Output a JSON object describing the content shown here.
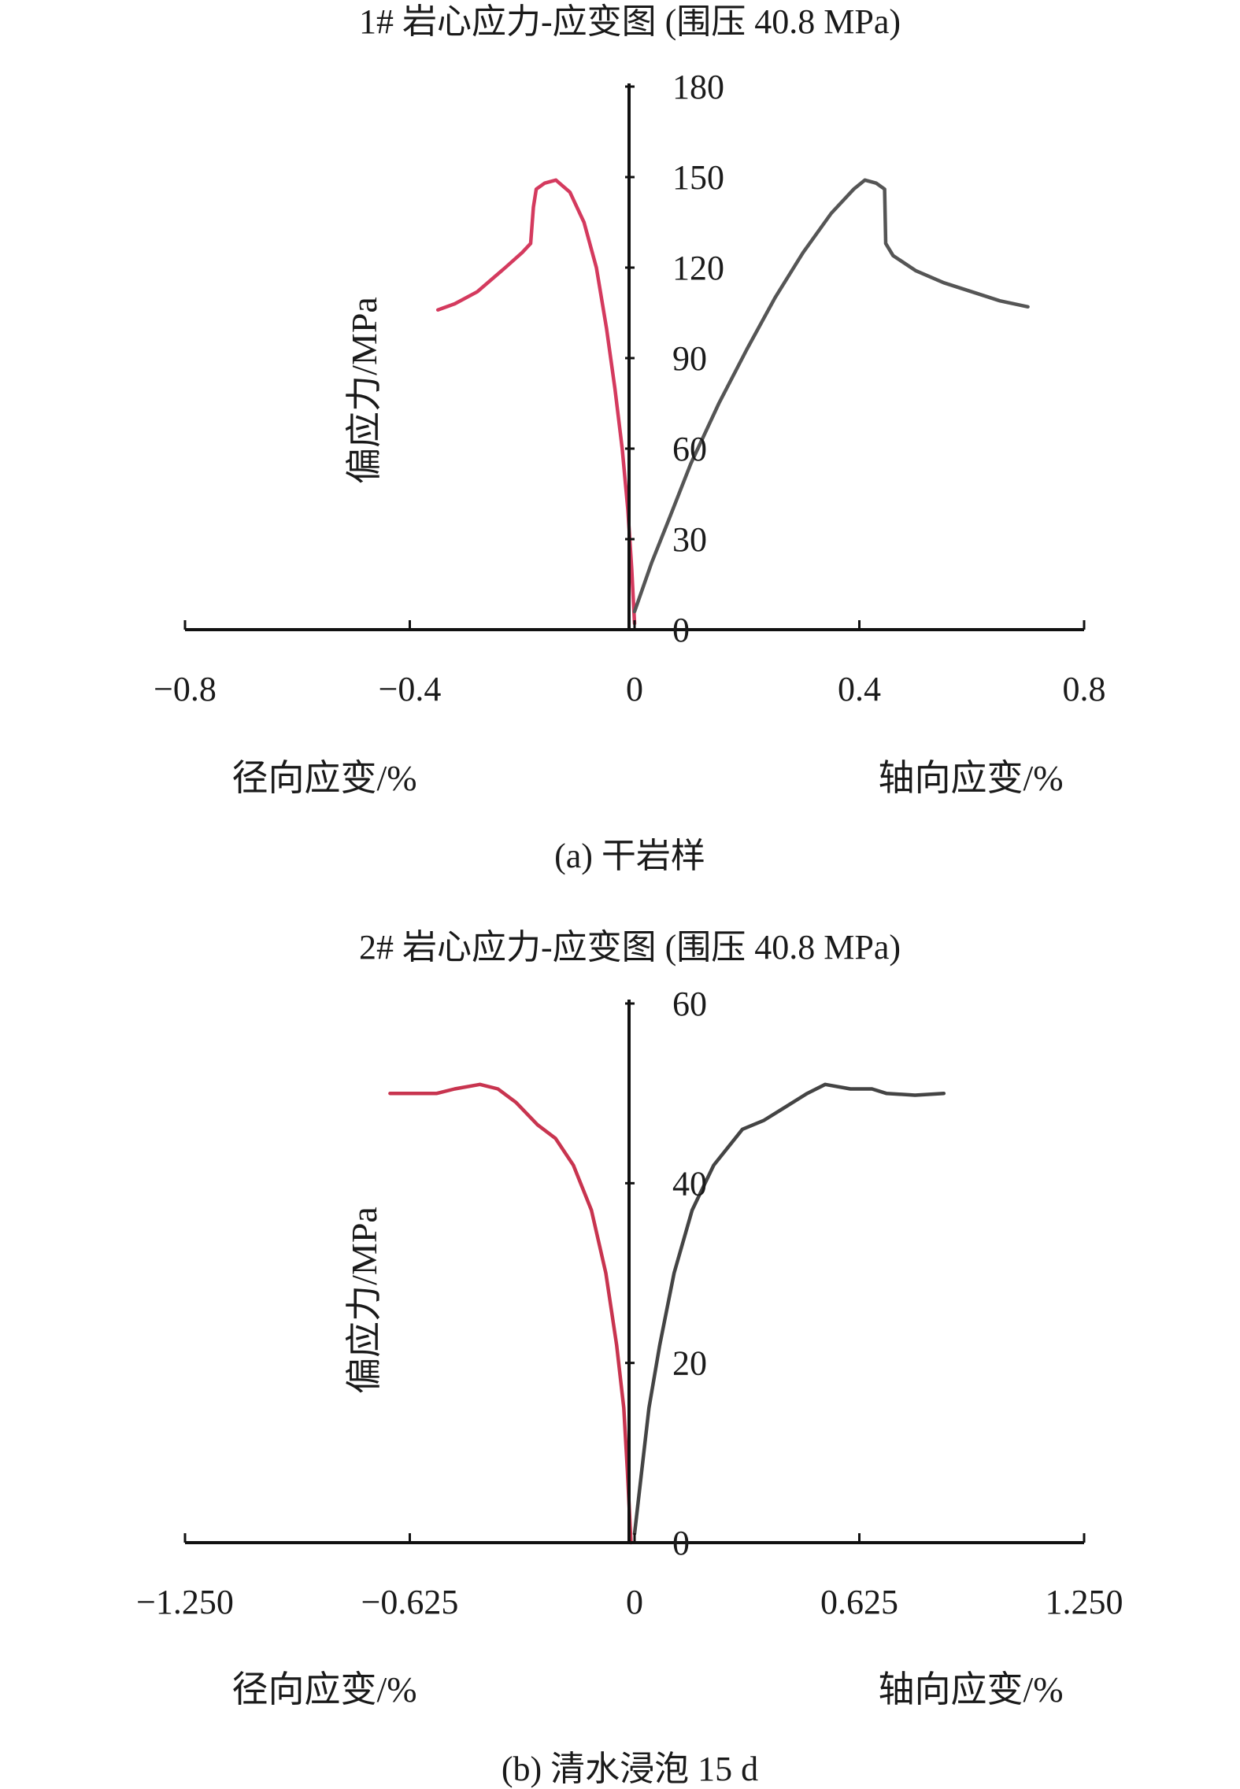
{
  "chart_data": [
    {
      "type": "line",
      "title": "1# 岩心应力-应变图 (围压 40.8 MPa)",
      "caption": "(a) 干岩样",
      "ylabel": "偏应力/MPa",
      "xlabel_left": "径向应变/%",
      "xlabel_right": "轴向应变/%",
      "xlim": [
        -0.8,
        0.8
      ],
      "ylim": [
        0,
        180
      ],
      "x_ticks": [
        -0.8,
        -0.4,
        0,
        0.4,
        0.8
      ],
      "x_tick_labels": [
        "−0.8",
        "−0.4",
        "0",
        "0.4",
        "0.8"
      ],
      "y_ticks": [
        0,
        30,
        60,
        90,
        120,
        150,
        180
      ],
      "y_tick_labels": [
        "0",
        "30",
        "60",
        "90",
        "120",
        "150",
        "180"
      ],
      "series": [
        {
          "color": "#d43a5e",
          "points": [
            [
              0,
              2
            ],
            [
              -0.005,
              20
            ],
            [
              -0.012,
              40
            ],
            [
              -0.022,
              60
            ],
            [
              -0.035,
              80
            ],
            [
              -0.05,
              100
            ],
            [
              -0.068,
              120
            ],
            [
              -0.09,
              135
            ],
            [
              -0.115,
              145
            ],
            [
              -0.14,
              149
            ],
            [
              -0.16,
              148
            ],
            [
              -0.175,
              146
            ],
            [
              -0.18,
              140
            ],
            [
              -0.185,
              128
            ],
            [
              -0.2,
              125
            ],
            [
              -0.23,
              120
            ],
            [
              -0.28,
              112
            ],
            [
              -0.32,
              108
            ],
            [
              -0.35,
              106
            ]
          ]
        },
        {
          "color": "#555555",
          "points": [
            [
              0,
              6
            ],
            [
              0.03,
              22
            ],
            [
              0.06,
              36
            ],
            [
              0.1,
              55
            ],
            [
              0.15,
              75
            ],
            [
              0.2,
              93
            ],
            [
              0.25,
              110
            ],
            [
              0.3,
              125
            ],
            [
              0.35,
              138
            ],
            [
              0.39,
              146
            ],
            [
              0.41,
              149
            ],
            [
              0.43,
              148
            ],
            [
              0.445,
              146
            ],
            [
              0.447,
              128
            ],
            [
              0.46,
              124
            ],
            [
              0.5,
              119
            ],
            [
              0.55,
              115
            ],
            [
              0.6,
              112
            ],
            [
              0.65,
              109
            ],
            [
              0.7,
              107
            ]
          ]
        }
      ]
    },
    {
      "type": "line",
      "title": "2# 岩心应力-应变图 (围压 40.8 MPa)",
      "caption": "(b) 清水浸泡 15 d",
      "ylabel": "偏应力/MPa",
      "xlabel_left": "径向应变/%",
      "xlabel_right": "轴向应变/%",
      "xlim": [
        -1.25,
        1.25
      ],
      "ylim": [
        0,
        60
      ],
      "x_ticks": [
        -1.25,
        -0.625,
        0,
        0.625,
        1.25
      ],
      "x_tick_labels": [
        "−1.250",
        "−0.625",
        "0",
        "0.625",
        "1.250"
      ],
      "y_ticks": [
        0,
        20,
        40,
        60
      ],
      "y_tick_labels": [
        "0",
        "20",
        "40",
        "60"
      ],
      "series": [
        {
          "color": "#c8344f",
          "points": [
            [
              -0.01,
              0
            ],
            [
              -0.02,
              8
            ],
            [
              -0.03,
              15
            ],
            [
              -0.05,
              22
            ],
            [
              -0.08,
              30
            ],
            [
              -0.12,
              37
            ],
            [
              -0.17,
              42
            ],
            [
              -0.22,
              45
            ],
            [
              -0.27,
              46.5
            ],
            [
              -0.33,
              49
            ],
            [
              -0.38,
              50.5
            ],
            [
              -0.43,
              51
            ],
            [
              -0.5,
              50.5
            ],
            [
              -0.55,
              50
            ],
            [
              -0.62,
              50
            ],
            [
              -0.68,
              50
            ]
          ]
        },
        {
          "color": "#444444",
          "points": [
            [
              0,
              1
            ],
            [
              0.02,
              8
            ],
            [
              0.04,
              15
            ],
            [
              0.07,
              22
            ],
            [
              0.11,
              30
            ],
            [
              0.16,
              37
            ],
            [
              0.22,
              42
            ],
            [
              0.3,
              46
            ],
            [
              0.36,
              47
            ],
            [
              0.42,
              48.5
            ],
            [
              0.48,
              50
            ],
            [
              0.53,
              51
            ],
            [
              0.6,
              50.5
            ],
            [
              0.66,
              50.5
            ],
            [
              0.7,
              50
            ],
            [
              0.78,
              49.8
            ],
            [
              0.86,
              50
            ]
          ]
        }
      ]
    }
  ]
}
